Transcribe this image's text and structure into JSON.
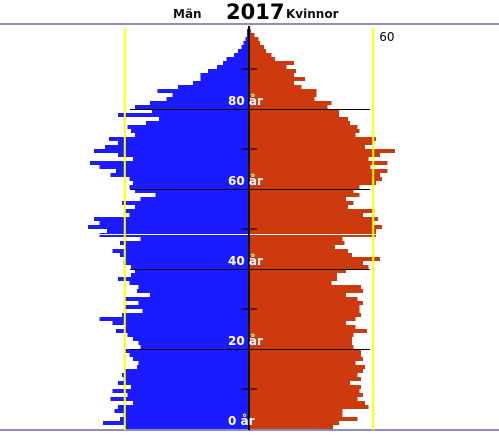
{
  "header": {
    "men_label": "Män",
    "year": "2017",
    "women_label": "Kvinnor"
  },
  "colors": {
    "men": "#1b1bff",
    "women": "#cc3a0d",
    "reference_line": "#ffff00",
    "frame": "#1a1a8c",
    "axis": "#000000"
  },
  "chart_data": {
    "type": "bar",
    "orientation": "horizontal-pyramid",
    "title": "2017",
    "age_min": 0,
    "age_max": 100,
    "age_tick_labels": [
      "0 år",
      "20 år",
      "40 år",
      "60 år",
      "80 år"
    ],
    "age_ticks": [
      0,
      20,
      40,
      60,
      80
    ],
    "reference_line_label": "60",
    "reference_line_value": 60,
    "series": [
      {
        "name": "Män",
        "side": "left",
        "values": [
          66,
          78,
          69,
          67,
          72,
          70,
          62,
          74,
          65,
          73,
          63,
          70,
          67,
          68,
          66,
          60,
          59,
          62,
          64,
          66,
          58,
          59,
          62,
          65,
          71,
          66,
          73,
          80,
          68,
          57,
          66,
          59,
          66,
          53,
          60,
          59,
          64,
          70,
          63,
          61,
          63,
          67,
          66,
          69,
          73,
          66,
          69,
          58,
          80,
          76,
          86,
          80,
          83,
          64,
          66,
          61,
          68,
          58,
          50,
          61,
          64,
          62,
          64,
          74,
          71,
          80,
          85,
          62,
          70,
          83,
          77,
          70,
          75,
          61,
          63,
          65,
          55,
          48,
          70,
          52,
          61,
          53,
          44,
          41,
          49,
          38,
          30,
          26,
          26,
          22,
          17,
          14,
          12,
          8,
          6,
          4,
          3,
          2,
          1,
          1,
          0
        ]
      },
      {
        "name": "Kvinnor",
        "side": "right",
        "values": [
          45,
          48,
          58,
          50,
          50,
          64,
          62,
          58,
          61,
          59,
          60,
          54,
          60,
          58,
          61,
          62,
          57,
          61,
          60,
          60,
          56,
          55,
          55,
          56,
          63,
          57,
          52,
          57,
          60,
          59,
          59,
          61,
          58,
          52,
          61,
          60,
          44,
          47,
          47,
          52,
          64,
          61,
          70,
          55,
          53,
          46,
          51,
          50,
          68,
          68,
          71,
          66,
          69,
          61,
          67,
          53,
          56,
          52,
          59,
          56,
          59,
          68,
          71,
          70,
          74,
          65,
          74,
          64,
          70,
          78,
          62,
          66,
          68,
          57,
          59,
          58,
          54,
          53,
          48,
          48,
          42,
          44,
          35,
          36,
          36,
          28,
          24,
          30,
          24,
          25,
          20,
          24,
          14,
          12,
          9,
          8,
          6,
          5,
          3,
          1,
          0
        ]
      }
    ]
  }
}
